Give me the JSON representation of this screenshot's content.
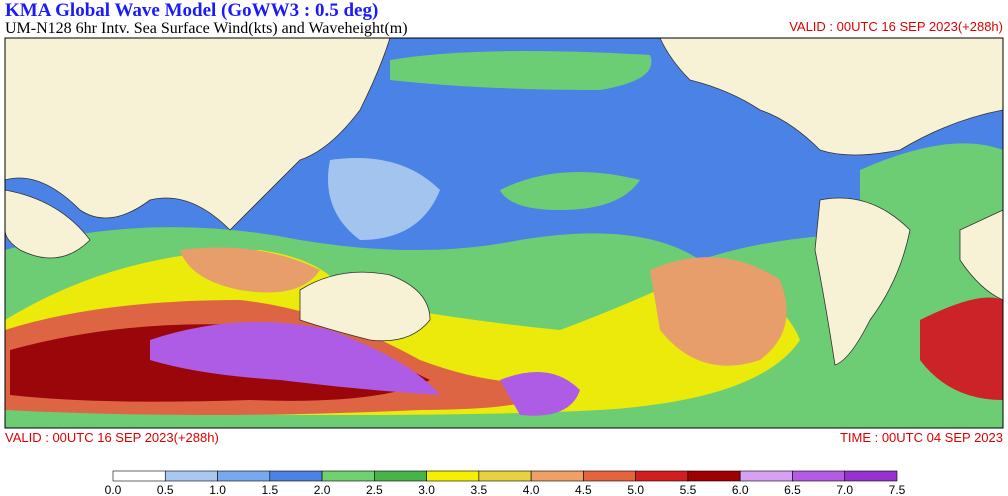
{
  "header": {
    "title": "KMA  Global Wave Model (GoWW3 : 0.5 deg)",
    "subtitle": "UM-N128  6hr Intv. Sea Surface Wind(kts) and Waveheight(m)",
    "valid_top": "VALID : 00UTC 16 SEP 2023(+288h)"
  },
  "footer": {
    "valid": "VALID : 00UTC 16 SEP 2023(+288h)",
    "time": "TIME : 00UTC 04 SEP 2023"
  },
  "colorbar": {
    "ticks": [
      {
        "value": 0,
        "label": "0.0"
      },
      {
        "value": 0.5,
        "label": "0.5"
      },
      {
        "value": 1,
        "label": "1.0"
      },
      {
        "value": 1.5,
        "label": "1.5"
      },
      {
        "value": 2,
        "label": "2.0"
      },
      {
        "value": 2.5,
        "label": "2.5"
      },
      {
        "value": 3,
        "label": "3.0"
      },
      {
        "value": 3.5,
        "label": "3.5"
      },
      {
        "value": 4,
        "label": "4.0"
      },
      {
        "value": 4.5,
        "label": "4.5"
      },
      {
        "value": 5,
        "label": "5.0"
      },
      {
        "value": 5.5,
        "label": "5.5"
      },
      {
        "value": 6,
        "label": "6.0"
      },
      {
        "value": 6.5,
        "label": "6.5"
      },
      {
        "value": 7,
        "label": "7.0"
      },
      {
        "value": 7.5,
        "label": "7.5"
      }
    ],
    "colors": [
      "#ffffff",
      "#a8c8f0",
      "#78a8f0",
      "#4a82e6",
      "#6ed26e",
      "#46b446",
      "#f5f000",
      "#e6d23c",
      "#f0a064",
      "#e6643c",
      "#d21e1e",
      "#a00000",
      "#d7a0f5",
      "#b45ae6",
      "#9632d2"
    ]
  }
}
